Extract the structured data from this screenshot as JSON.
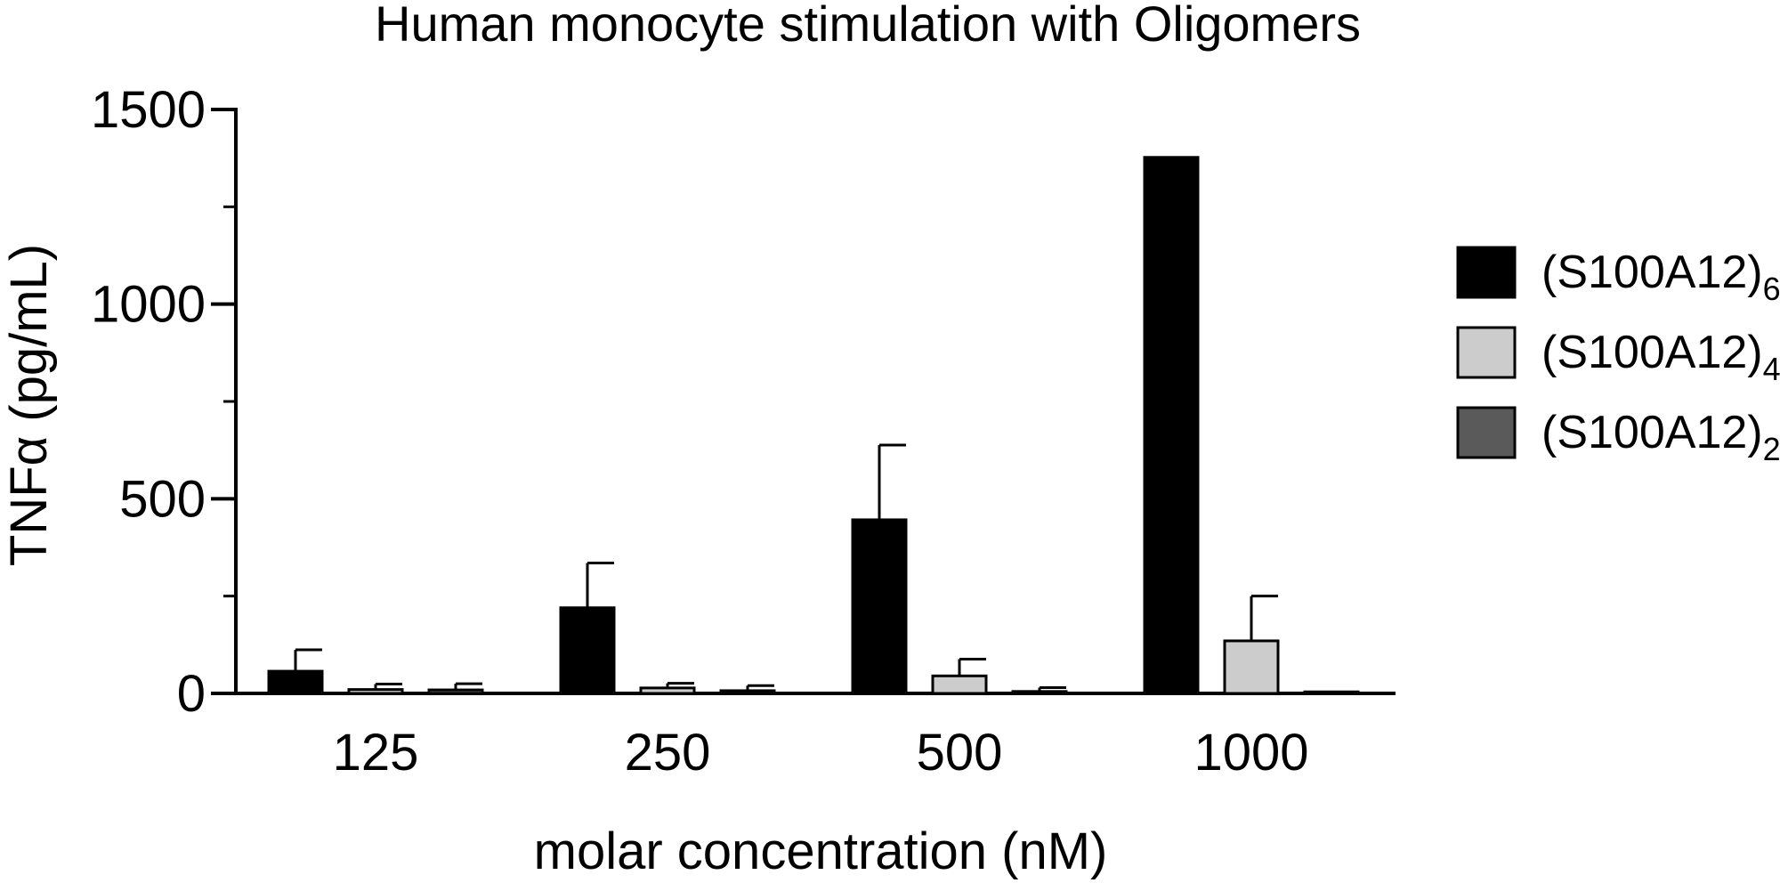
{
  "chart_data": {
    "type": "bar",
    "title": "Human monocyte stimulation with Oligomers",
    "xlabel": "molar concentration (nM)",
    "ylabel": "TNFα (pg/mL)",
    "ylim": [
      0,
      1500
    ],
    "yticks": [
      0,
      500,
      1000,
      1500
    ],
    "yminor_step": 250,
    "categories": [
      "125",
      "250",
      "500",
      "1000"
    ],
    "series": [
      {
        "name": "(S100A12)",
        "subscript": "6",
        "color": "#000000",
        "values": [
          57,
          220,
          446,
          1377
        ],
        "errors": [
          55,
          115,
          192,
          0
        ]
      },
      {
        "name": "(S100A12)",
        "subscript": "4",
        "color": "#cccccc",
        "values": [
          10,
          14,
          45,
          135
        ],
        "errors": [
          14,
          12,
          43,
          115
        ]
      },
      {
        "name": "(S100A12)",
        "subscript": "2",
        "color": "#5a5a5a",
        "values": [
          9,
          7,
          5,
          4
        ],
        "errors": [
          16,
          13,
          10,
          0
        ]
      }
    ],
    "legend_position": "right"
  }
}
